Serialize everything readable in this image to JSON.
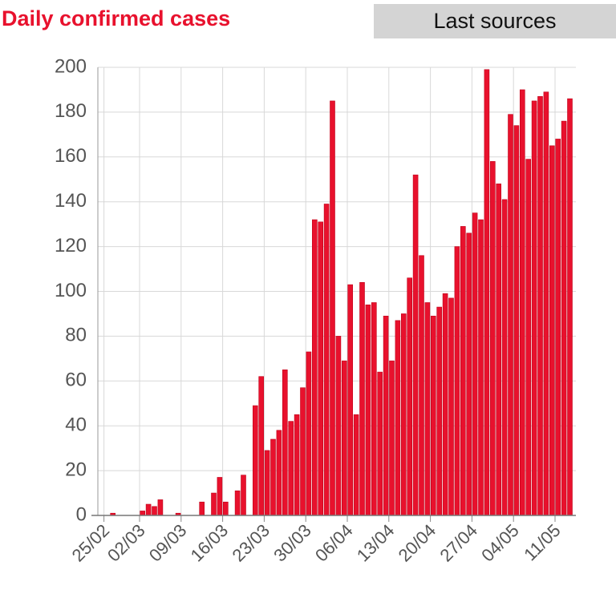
{
  "button": "Last sources",
  "chart_data": {
    "type": "bar",
    "title": "Daily confirmed cases",
    "color": "#e8112d",
    "categories": [
      "25/02",
      null,
      null,
      null,
      null,
      null,
      "02/03",
      null,
      null,
      null,
      null,
      null,
      null,
      "09/03",
      null,
      null,
      null,
      null,
      null,
      null,
      "16/03",
      null,
      null,
      null,
      null,
      null,
      null,
      "23/03",
      null,
      null,
      null,
      null,
      null,
      null,
      "30/03",
      null,
      null,
      null,
      null,
      null,
      null,
      "06/04",
      null,
      null,
      null,
      null,
      null,
      null,
      "13/04",
      null,
      null,
      null,
      null,
      null,
      null,
      "20/04",
      null,
      null,
      null,
      null,
      null,
      null,
      "27/04",
      null,
      null,
      null,
      null,
      null,
      null,
      "04/05",
      null,
      null,
      null,
      null,
      null,
      null,
      "11/05",
      null,
      null
    ],
    "values": [
      0,
      1,
      0,
      0,
      0,
      0,
      2,
      5,
      4,
      7,
      0,
      0,
      1,
      0,
      0,
      0,
      6,
      0,
      10,
      17,
      6,
      0,
      11,
      18,
      0,
      49,
      62,
      29,
      34,
      38,
      65,
      42,
      45,
      57,
      73,
      132,
      131,
      139,
      185,
      80,
      69,
      103,
      45,
      104,
      94,
      95,
      64,
      89,
      69,
      87,
      90,
      106,
      152,
      116,
      95,
      89,
      93,
      99,
      97,
      120,
      129,
      126,
      135,
      132,
      199,
      158,
      148,
      141,
      179,
      174,
      190,
      159,
      185,
      187,
      189,
      165,
      168,
      176,
      186
    ],
    "ylim": [
      0,
      200
    ],
    "yticks": [
      0,
      20,
      40,
      60,
      80,
      100,
      120,
      140,
      160,
      180,
      200
    ],
    "grid": true
  }
}
